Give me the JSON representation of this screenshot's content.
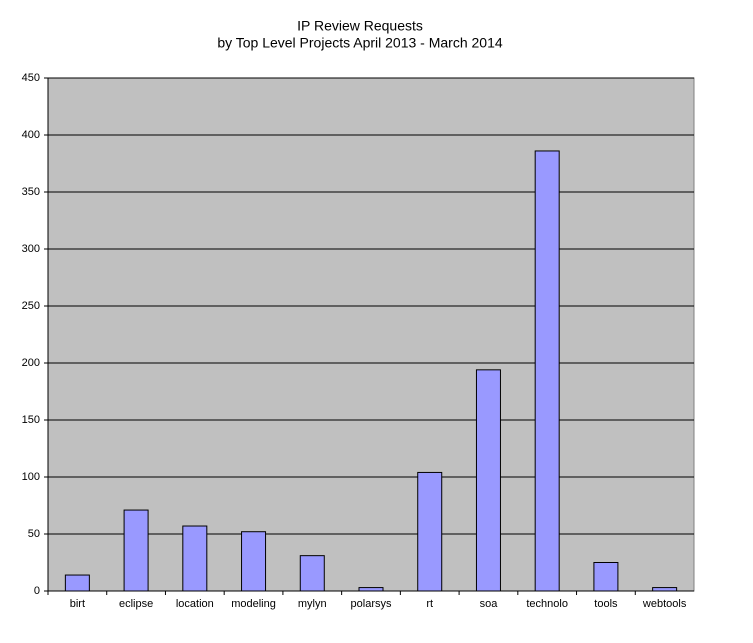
{
  "chart_data": {
    "type": "bar",
    "title": "IP Review Requests",
    "subtitle": "by Top Level Projects April 2013 - March 2014",
    "categories": [
      "birt",
      "eclipse",
      "location",
      "modeling",
      "mylyn",
      "polarsys",
      "rt",
      "soa",
      "technolo",
      "tools",
      "webtools"
    ],
    "values": [
      14,
      71,
      57,
      52,
      31,
      3,
      104,
      194,
      386,
      25,
      3
    ],
    "color": "#9999ff",
    "ylim": [
      0,
      450
    ],
    "yticks": [
      0,
      50,
      100,
      150,
      200,
      250,
      300,
      350,
      400,
      450
    ],
    "grid": true
  }
}
